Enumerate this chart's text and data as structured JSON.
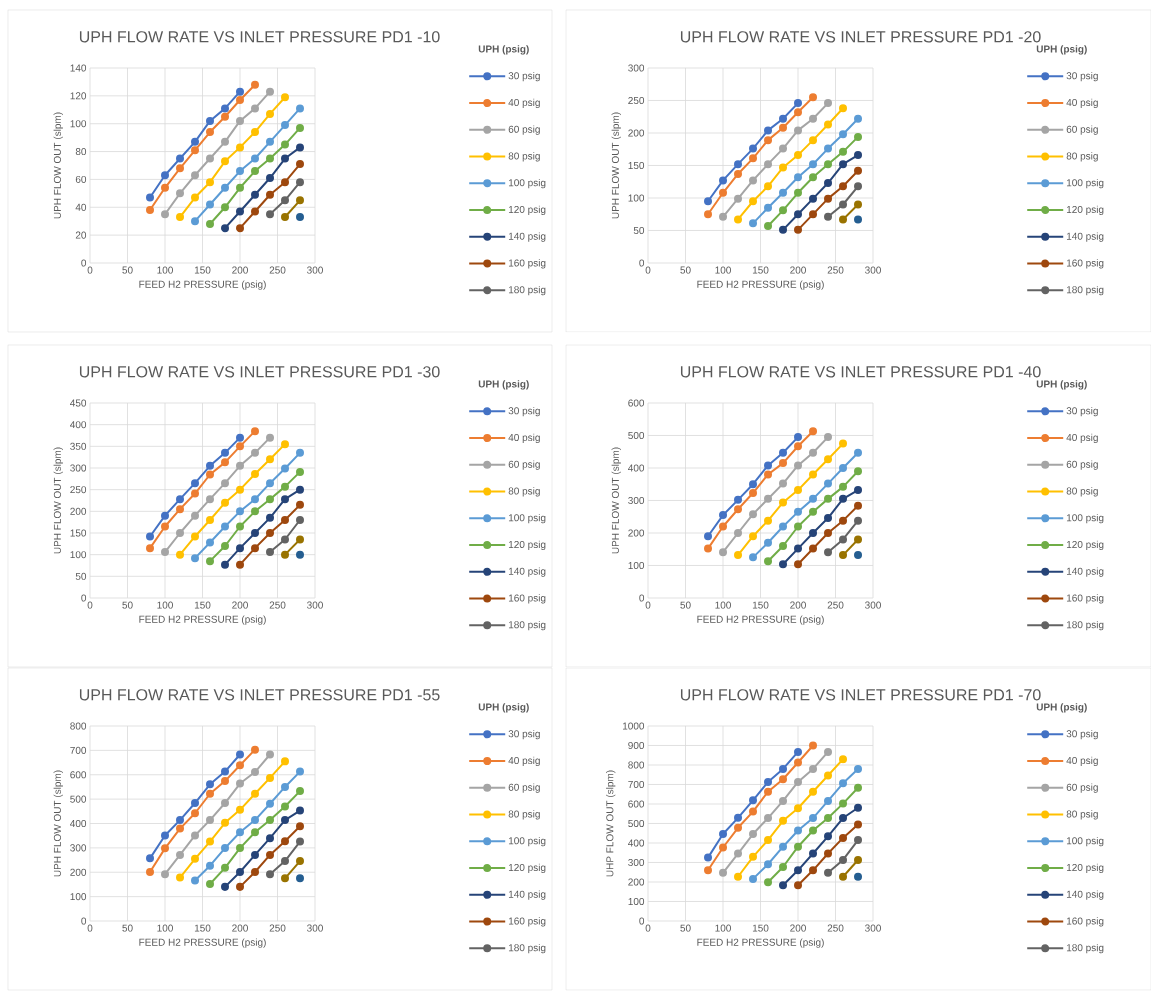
{
  "chart_data": [
    {
      "type": "line",
      "title": "UPH FLOW RATE VS INLET PRESSURE PD1 -10",
      "xlabel": "FEED H2 PRESSURE (psig)",
      "ylabel": "UPH FLOW OUT (slpm)",
      "legend_title": "UPH (psig)",
      "legend": "right",
      "grid": true,
      "marker": "circle",
      "xlim": [
        0,
        300
      ],
      "xticks": [
        0,
        50,
        100,
        150,
        200,
        250,
        300
      ],
      "ylim": [
        0,
        140
      ],
      "yticks": [
        0,
        20,
        40,
        60,
        80,
        100,
        120,
        140
      ],
      "series": [
        {
          "name": "30 psig",
          "color": "#4472c4",
          "x": [
            80,
            100,
            120,
            140,
            160,
            180,
            200
          ],
          "values": [
            47,
            63,
            75,
            87,
            102,
            111,
            123
          ]
        },
        {
          "name": "40 psig",
          "color": "#ed7d31",
          "x": [
            80,
            100,
            120,
            140,
            160,
            180,
            200,
            220
          ],
          "values": [
            38,
            54,
            68,
            81,
            94,
            105,
            117,
            128
          ]
        },
        {
          "name": "60 psig",
          "color": "#a5a5a5",
          "x": [
            100,
            120,
            140,
            160,
            180,
            200,
            220,
            240
          ],
          "values": [
            35,
            50,
            63,
            75,
            87,
            102,
            111,
            123
          ]
        },
        {
          "name": "80 psig",
          "color": "#ffc000",
          "x": [
            120,
            140,
            160,
            180,
            200,
            220,
            240,
            260
          ],
          "values": [
            33,
            47,
            58,
            73,
            83,
            94,
            107,
            119
          ]
        },
        {
          "name": "100 psig",
          "color": "#5b9bd5",
          "x": [
            140,
            160,
            180,
            200,
            220,
            240,
            260,
            280
          ],
          "values": [
            30,
            42,
            54,
            66,
            75,
            87,
            99,
            111
          ]
        },
        {
          "name": "120 psig",
          "color": "#70ad47",
          "x": [
            160,
            180,
            200,
            220,
            240,
            260,
            280
          ],
          "values": [
            28,
            40,
            54,
            66,
            75,
            85,
            97
          ]
        },
        {
          "name": "140 psig",
          "color": "#264478",
          "x": [
            180,
            200,
            220,
            240,
            260,
            280
          ],
          "values": [
            25,
            37,
            49,
            61,
            75,
            83
          ]
        },
        {
          "name": "160 psig",
          "color": "#9e480e",
          "x": [
            200,
            220,
            240,
            260,
            280
          ],
          "values": [
            25,
            37,
            49,
            58,
            71
          ]
        },
        {
          "name": "180 psig",
          "color": "#636363",
          "x": [
            240,
            260,
            280
          ],
          "values": [
            35,
            45,
            58
          ]
        },
        {
          "color": "#997300",
          "x": [
            260,
            280
          ],
          "values": [
            33,
            45
          ]
        },
        {
          "color": "#255e91",
          "x": [
            280
          ],
          "values": [
            33
          ]
        }
      ]
    },
    {
      "type": "line",
      "title": "UPH FLOW RATE VS INLET PRESSURE PD1 -20",
      "xlabel": "FEED H2 PRESSURE (psig)",
      "ylabel": "UPH FLOW OUT (slpm)",
      "legend_title": "UPH (psig)",
      "legend": "right",
      "grid": true,
      "marker": "circle",
      "xlim": [
        0,
        300
      ],
      "xticks": [
        0,
        50,
        100,
        150,
        200,
        250,
        300
      ],
      "ylim": [
        0,
        300
      ],
      "yticks": [
        0,
        50,
        100,
        150,
        200,
        250,
        300
      ],
      "series": [
        {
          "name": "30 psig",
          "color": "#4472c4",
          "x": [
            80,
            100,
            120,
            140,
            160,
            180,
            200
          ],
          "values": [
            95,
            127,
            152,
            176,
            204,
            222,
            246
          ]
        },
        {
          "name": "40 psig",
          "color": "#ed7d31",
          "x": [
            80,
            100,
            120,
            140,
            160,
            180,
            200,
            220
          ],
          "values": [
            75,
            108,
            137,
            161,
            189,
            208,
            232,
            255
          ]
        },
        {
          "name": "60 psig",
          "color": "#a5a5a5",
          "x": [
            100,
            120,
            140,
            160,
            180,
            200,
            220,
            240
          ],
          "values": [
            71,
            99,
            127,
            152,
            176,
            204,
            222,
            246
          ]
        },
        {
          "name": "80 psig",
          "color": "#ffc000",
          "x": [
            120,
            140,
            160,
            180,
            200,
            220,
            240,
            260
          ],
          "values": [
            67,
            95,
            118,
            147,
            166,
            189,
            213,
            238
          ]
        },
        {
          "name": "100 psig",
          "color": "#5b9bd5",
          "x": [
            140,
            160,
            180,
            200,
            220,
            240,
            260,
            280
          ],
          "values": [
            61,
            85,
            108,
            132,
            152,
            176,
            198,
            222
          ]
        },
        {
          "name": "120 psig",
          "color": "#70ad47",
          "x": [
            160,
            180,
            200,
            220,
            240,
            260,
            280
          ],
          "values": [
            57,
            81,
            108,
            132,
            152,
            171,
            194
          ]
        },
        {
          "name": "140 psig",
          "color": "#264478",
          "x": [
            180,
            200,
            220,
            240,
            260,
            280
          ],
          "values": [
            51,
            75,
            99,
            123,
            152,
            166
          ]
        },
        {
          "name": "160 psig",
          "color": "#9e480e",
          "x": [
            200,
            220,
            240,
            260,
            280
          ],
          "values": [
            51,
            75,
            99,
            118,
            142
          ]
        },
        {
          "name": "180 psig",
          "color": "#636363",
          "x": [
            240,
            260,
            280
          ],
          "values": [
            71,
            90,
            118
          ]
        },
        {
          "color": "#997300",
          "x": [
            260,
            280
          ],
          "values": [
            67,
            90
          ]
        },
        {
          "color": "#255e91",
          "x": [
            280
          ],
          "values": [
            67
          ]
        }
      ]
    },
    {
      "type": "line",
      "title": "UPH FLOW RATE VS INLET PRESSURE PD1 -30",
      "xlabel": "FEED H2 PRESSURE (psig)",
      "ylabel": "UPH FLOW OUT (slpm)",
      "legend_title": "UPH (psig)",
      "legend": "right",
      "grid": true,
      "marker": "circle",
      "xlim": [
        0,
        300
      ],
      "xticks": [
        0,
        50,
        100,
        150,
        200,
        250,
        300
      ],
      "ylim": [
        0,
        450
      ],
      "yticks": [
        0,
        50,
        100,
        150,
        200,
        250,
        300,
        350,
        400,
        450
      ],
      "series": [
        {
          "name": "30 psig",
          "color": "#4472c4",
          "x": [
            80,
            100,
            120,
            140,
            160,
            180,
            200
          ],
          "values": [
            142,
            190,
            228,
            265,
            305,
            335,
            370
          ]
        },
        {
          "name": "40 psig",
          "color": "#ed7d31",
          "x": [
            80,
            100,
            120,
            140,
            160,
            180,
            200,
            220
          ],
          "values": [
            115,
            165,
            205,
            241,
            285,
            313,
            350,
            385
          ]
        },
        {
          "name": "60 psig",
          "color": "#a5a5a5",
          "x": [
            100,
            120,
            140,
            160,
            180,
            200,
            220,
            240
          ],
          "values": [
            106,
            150,
            190,
            228,
            265,
            305,
            335,
            370
          ]
        },
        {
          "name": "80 psig",
          "color": "#ffc000",
          "x": [
            120,
            140,
            160,
            180,
            200,
            220,
            240,
            260
          ],
          "values": [
            100,
            142,
            180,
            220,
            250,
            286,
            320,
            355
          ]
        },
        {
          "name": "100 psig",
          "color": "#5b9bd5",
          "x": [
            140,
            160,
            180,
            200,
            220,
            240,
            260,
            280
          ],
          "values": [
            92,
            128,
            165,
            200,
            228,
            265,
            299,
            335
          ]
        },
        {
          "name": "120 psig",
          "color": "#70ad47",
          "x": [
            160,
            180,
            200,
            220,
            240,
            260,
            280
          ],
          "values": [
            85,
            120,
            165,
            200,
            228,
            257,
            291
          ]
        },
        {
          "name": "140 psig",
          "color": "#264478",
          "x": [
            180,
            200,
            220,
            240,
            260,
            280
          ],
          "values": [
            77,
            115,
            150,
            185,
            228,
            250
          ]
        },
        {
          "name": "160 psig",
          "color": "#9e480e",
          "x": [
            200,
            220,
            240,
            260,
            280
          ],
          "values": [
            77,
            115,
            150,
            180,
            215
          ]
        },
        {
          "name": "180 psig",
          "color": "#636363",
          "x": [
            240,
            260,
            280
          ],
          "values": [
            106,
            135,
            180
          ]
        },
        {
          "color": "#997300",
          "x": [
            260,
            280
          ],
          "values": [
            100,
            135
          ]
        },
        {
          "color": "#255e91",
          "x": [
            280
          ],
          "values": [
            100
          ]
        }
      ]
    },
    {
      "type": "line",
      "title": "UPH FLOW RATE VS INLET PRESSURE PD1 -40",
      "xlabel": "FEED H2 PRESSURE (psig)",
      "ylabel": "UPH FLOW OUT (slpm)",
      "legend_title": "UPH (psig)",
      "legend": "right",
      "grid": true,
      "marker": "circle",
      "xlim": [
        0,
        300
      ],
      "xticks": [
        0,
        50,
        100,
        150,
        200,
        250,
        300
      ],
      "ylim": [
        0,
        600
      ],
      "yticks": [
        0,
        100,
        200,
        300,
        400,
        500,
        600
      ],
      "series": [
        {
          "name": "30 psig",
          "color": "#4472c4",
          "x": [
            80,
            100,
            120,
            140,
            160,
            180,
            200
          ],
          "values": [
            190,
            255,
            302,
            350,
            408,
            447,
            495
          ]
        },
        {
          "name": "40 psig",
          "color": "#ed7d31",
          "x": [
            80,
            100,
            120,
            140,
            160,
            180,
            200,
            220
          ],
          "values": [
            152,
            220,
            273,
            323,
            380,
            415,
            467,
            513
          ]
        },
        {
          "name": "60 psig",
          "color": "#a5a5a5",
          "x": [
            100,
            120,
            140,
            160,
            180,
            200,
            220,
            240
          ],
          "values": [
            141,
            200,
            258,
            305,
            352,
            408,
            447,
            495
          ]
        },
        {
          "name": "80 psig",
          "color": "#ffc000",
          "x": [
            120,
            140,
            160,
            180,
            200,
            220,
            240,
            260
          ],
          "values": [
            132,
            190,
            238,
            294,
            332,
            380,
            427,
            475
          ]
        },
        {
          "name": "100 psig",
          "color": "#5b9bd5",
          "x": [
            140,
            160,
            180,
            200,
            220,
            240,
            260,
            280
          ],
          "values": [
            125,
            170,
            220,
            265,
            305,
            352,
            400,
            447
          ]
        },
        {
          "name": "120 psig",
          "color": "#70ad47",
          "x": [
            160,
            180,
            200,
            220,
            240,
            260,
            280
          ],
          "values": [
            113,
            160,
            220,
            265,
            305,
            342,
            390
          ]
        },
        {
          "name": "140 psig",
          "color": "#264478",
          "x": [
            180,
            200,
            220,
            240,
            260,
            280
          ],
          "values": [
            104,
            152,
            200,
            246,
            305,
            332
          ]
        },
        {
          "name": "160 psig",
          "color": "#9e480e",
          "x": [
            200,
            220,
            240,
            260,
            280
          ],
          "values": [
            104,
            152,
            200,
            238,
            284
          ]
        },
        {
          "name": "180 psig",
          "color": "#636363",
          "x": [
            240,
            260,
            280
          ],
          "values": [
            141,
            180,
            238
          ]
        },
        {
          "color": "#997300",
          "x": [
            260,
            280
          ],
          "values": [
            132,
            180
          ]
        },
        {
          "color": "#255e91",
          "x": [
            280
          ],
          "values": [
            132
          ]
        }
      ]
    },
    {
      "type": "line",
      "title": "UPH FLOW RATE VS INLET PRESSURE PD1 -55",
      "xlabel": "FEED H2 PRESSURE (psig)",
      "ylabel": "UPH FLOW OUT (slpm)",
      "legend_title": "UPH (psig)",
      "legend": "right",
      "grid": true,
      "marker": "circle",
      "xlim": [
        0,
        300
      ],
      "xticks": [
        0,
        50,
        100,
        150,
        200,
        250,
        300
      ],
      "ylim": [
        0,
        800
      ],
      "yticks": [
        0,
        100,
        200,
        300,
        400,
        500,
        600,
        700,
        800
      ],
      "series": [
        {
          "name": "30 psig",
          "color": "#4472c4",
          "x": [
            80,
            100,
            120,
            140,
            160,
            180,
            200
          ],
          "values": [
            257,
            351,
            414,
            484,
            561,
            613,
            683
          ]
        },
        {
          "name": "40 psig",
          "color": "#ed7d31",
          "x": [
            80,
            100,
            120,
            140,
            160,
            180,
            200,
            220
          ],
          "values": [
            201,
            298,
            379,
            442,
            522,
            574,
            639,
            703
          ]
        },
        {
          "name": "60 psig",
          "color": "#a5a5a5",
          "x": [
            100,
            120,
            140,
            160,
            180,
            200,
            220,
            240
          ],
          "values": [
            192,
            271,
            351,
            414,
            484,
            564,
            611,
            683
          ]
        },
        {
          "name": "80 psig",
          "color": "#ffc000",
          "x": [
            120,
            140,
            160,
            180,
            200,
            220,
            240,
            260
          ],
          "values": [
            178,
            255,
            326,
            403,
            456,
            522,
            587,
            655
          ]
        },
        {
          "name": "100 psig",
          "color": "#5b9bd5",
          "x": [
            140,
            160,
            180,
            200,
            220,
            240,
            260,
            280
          ],
          "values": [
            166,
            227,
            299,
            364,
            414,
            481,
            550,
            613
          ]
        },
        {
          "name": "120 psig",
          "color": "#70ad47",
          "x": [
            160,
            180,
            200,
            220,
            240,
            260,
            280
          ],
          "values": [
            152,
            218,
            299,
            364,
            414,
            470,
            533
          ]
        },
        {
          "name": "140 psig",
          "color": "#264478",
          "x": [
            180,
            200,
            220,
            240,
            260,
            280
          ],
          "values": [
            140,
            201,
            271,
            340,
            414,
            453
          ]
        },
        {
          "name": "160 psig",
          "color": "#9e480e",
          "x": [
            200,
            220,
            240,
            260,
            280
          ],
          "values": [
            140,
            201,
            271,
            327,
            389
          ]
        },
        {
          "name": "180 psig",
          "color": "#636363",
          "x": [
            240,
            260,
            280
          ],
          "values": [
            192,
            246,
            326
          ]
        },
        {
          "color": "#997300",
          "x": [
            260,
            280
          ],
          "values": [
            175,
            246
          ]
        },
        {
          "color": "#255e91",
          "x": [
            280
          ],
          "values": [
            175
          ]
        }
      ]
    },
    {
      "type": "line",
      "title": "UPH FLOW RATE VS INLET PRESSURE PD1 -70",
      "xlabel": "FEED H2 PRESSURE (psig)",
      "ylabel": "UHP FLOW OUT (slpm)",
      "legend_title": "UPH (psig)",
      "legend": "right",
      "grid": true,
      "marker": "circle",
      "xlim": [
        0,
        300
      ],
      "xticks": [
        0,
        50,
        100,
        150,
        200,
        250,
        300
      ],
      "ylim": [
        0,
        1000
      ],
      "yticks": [
        0,
        100,
        200,
        300,
        400,
        500,
        600,
        700,
        800,
        900,
        1000
      ],
      "series": [
        {
          "name": "30 psig",
          "color": "#4472c4",
          "x": [
            80,
            100,
            120,
            140,
            160,
            180,
            200
          ],
          "values": [
            325,
            446,
            529,
            619,
            713,
            780,
            867
          ]
        },
        {
          "name": "40 psig",
          "color": "#ed7d31",
          "x": [
            80,
            100,
            120,
            140,
            160,
            180,
            200,
            220
          ],
          "values": [
            260,
            377,
            478,
            561,
            663,
            727,
            813,
            900
          ]
        },
        {
          "name": "60 psig",
          "color": "#a5a5a5",
          "x": [
            100,
            120,
            140,
            160,
            180,
            200,
            220,
            240
          ],
          "values": [
            247,
            346,
            446,
            528,
            616,
            713,
            780,
            867
          ]
        },
        {
          "name": "80 psig",
          "color": "#ffc000",
          "x": [
            120,
            140,
            160,
            180,
            200,
            220,
            240,
            260
          ],
          "values": [
            227,
            329,
            415,
            514,
            578,
            663,
            746,
            830
          ]
        },
        {
          "name": "100 psig",
          "color": "#5b9bd5",
          "x": [
            140,
            160,
            180,
            200,
            220,
            240,
            260,
            280
          ],
          "values": [
            216,
            291,
            381,
            464,
            528,
            616,
            706,
            779
          ]
        },
        {
          "name": "120 psig",
          "color": "#70ad47",
          "x": [
            160,
            180,
            200,
            220,
            240,
            260,
            280
          ],
          "values": [
            199,
            277,
            381,
            464,
            528,
            602,
            683
          ]
        },
        {
          "name": "140 psig",
          "color": "#264478",
          "x": [
            180,
            200,
            220,
            240,
            260,
            280
          ],
          "values": [
            183,
            260,
            346,
            434,
            528,
            581
          ]
        },
        {
          "name": "160 psig",
          "color": "#9e480e",
          "x": [
            200,
            220,
            240,
            260,
            280
          ],
          "values": [
            183,
            260,
            346,
            426,
            495
          ]
        },
        {
          "name": "180 psig",
          "color": "#636363",
          "x": [
            240,
            260,
            280
          ],
          "values": [
            247,
            313,
            415
          ]
        },
        {
          "color": "#997300",
          "x": [
            260,
            280
          ],
          "values": [
            227,
            313
          ]
        },
        {
          "color": "#255e91",
          "x": [
            280
          ],
          "values": [
            227
          ]
        }
      ]
    }
  ]
}
